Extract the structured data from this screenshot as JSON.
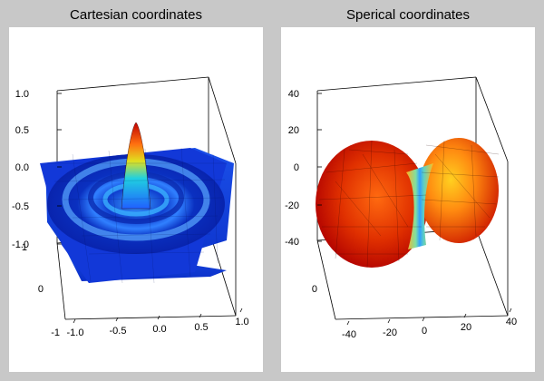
{
  "chart_data": [
    {
      "type": "surface3d",
      "title": "Cartesian coordinates",
      "z_ticks": [
        "1.0",
        "0.5",
        "0.0",
        "-0.5",
        "-1.0"
      ],
      "y_ticks": [
        "1",
        "0"
      ],
      "y_tick_extra": "-1",
      "x_ticks": [
        "-1.0",
        "-0.5",
        "0.0",
        "0.5",
        "1.0"
      ],
      "xlim": [
        -1,
        1
      ],
      "ylim": [
        -1,
        1
      ],
      "zlim": [
        -1,
        1
      ],
      "surface": "z = sin(r)/r style ripple, peak at origin"
    },
    {
      "type": "surface3d",
      "title": "Sperical coordinates",
      "z_ticks": [
        "40",
        "20",
        "0",
        "-20",
        "-40"
      ],
      "y_ticks": [
        "0"
      ],
      "x_ticks": [
        "-40",
        "-20",
        "0",
        "20",
        "40"
      ],
      "xlim": [
        -40,
        40
      ],
      "ylim": [
        -40,
        40
      ],
      "zlim": [
        -40,
        40
      ],
      "surface": "dumbbell-shaped radial surface"
    }
  ],
  "colors": {
    "background": "#c8c8c8",
    "plot_bg": "#ffffff",
    "jet_low": "#0000ff",
    "jet_high": "#ff0000"
  }
}
